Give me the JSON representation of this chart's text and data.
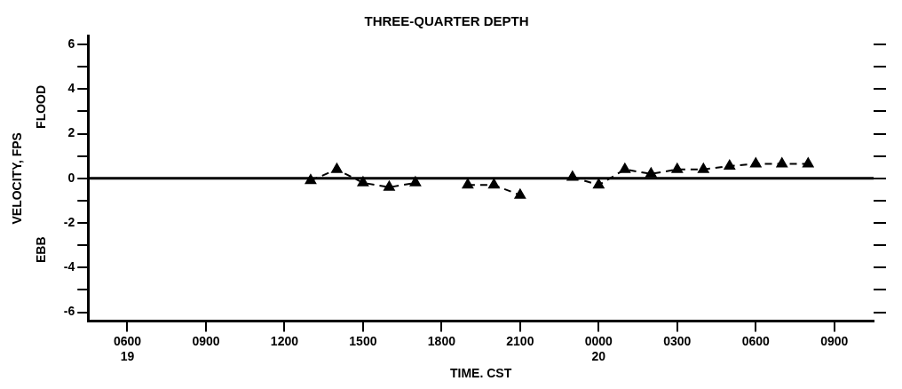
{
  "chart_data": {
    "type": "line",
    "title": "THREE-QUARTER DEPTH",
    "xlabel": "TIME. CST",
    "ylabel": "VELOCITY, FPS",
    "annotations": [
      "FLOOD",
      "EBB"
    ],
    "categories": [
      null,
      "0600\n19",
      null,
      null,
      "0900",
      null,
      null,
      "1200",
      null,
      null,
      "1500",
      null,
      null,
      "1800",
      null,
      null,
      "2100",
      null,
      null,
      "0000\n20",
      null,
      null,
      "0300",
      null,
      null,
      "0600",
      null,
      null,
      "0900",
      null
    ],
    "series": [
      {
        "color": "#000000",
        "values": [
          null,
          null,
          null,
          null,
          null,
          null,
          null,
          null,
          -0.1,
          0.4,
          -0.2,
          -0.4,
          -0.2,
          null,
          -0.3,
          -0.3,
          -0.75,
          null,
          0.05,
          -0.3,
          0.4,
          0.2,
          0.4,
          0.4,
          0.55,
          0.65,
          0.65,
          0.65,
          null,
          null
        ]
      }
    ],
    "marker": "triangle",
    "line_style": "dashed",
    "grid": false,
    "legend": false,
    "ylim": [
      -6.4,
      6.4
    ],
    "yticks": [
      -6,
      {
        "value": -5,
        "label": null
      },
      -4,
      {
        "value": -3,
        "label": null
      },
      -2,
      {
        "value": -1,
        "label": null
      },
      0,
      {
        "value": 1,
        "label": null
      },
      2,
      {
        "value": 3,
        "label": null
      },
      4,
      {
        "value": 5,
        "label": null
      },
      6
    ],
    "ref_lines": [
      {
        "axis": "y",
        "value": 0,
        "color": "#000000",
        "line_style": "solid"
      }
    ]
  }
}
